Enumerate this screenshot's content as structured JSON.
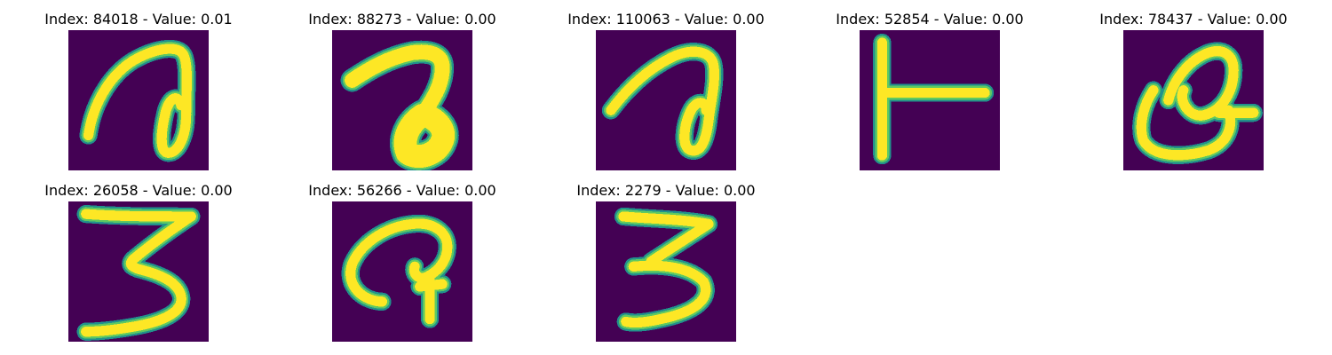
{
  "colors": {
    "background": "#440154",
    "edge_mid": "#21918c",
    "edge_light": "#5ec962",
    "stroke": "#fde725"
  },
  "samples": [
    {
      "title": "Index: 84018 - Value: 0.01"
    },
    {
      "title": "Index: 88273 - Value: 0.00"
    },
    {
      "title": "Index: 110063 - Value: 0.00"
    },
    {
      "title": "Index: 52854 - Value: 0.00"
    },
    {
      "title": "Index: 78437 - Value: 0.00"
    },
    {
      "title": "Index: 26058 - Value: 0.00"
    },
    {
      "title": "Index: 56266 - Value: 0.00"
    },
    {
      "title": "Index: 2279 - Value: 0.00"
    }
  ]
}
